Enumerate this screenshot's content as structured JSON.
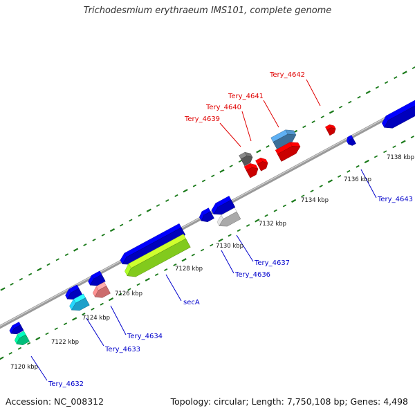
{
  "title": "Trichodesmium erythraeum IMS101, complete genome",
  "footer": {
    "accession": "Accession: NC_008312",
    "summary": "Topology: circular; Length: 7,750,108 bp; Genes: 4,498"
  },
  "colors": {
    "backbone": "#9a9a9a",
    "tick": "#1a7a1a",
    "forward_label": "#e00000",
    "reverse_label": "#0000cc",
    "leader_forward": "#e00000",
    "leader_reverse": "#0000cc"
  },
  "ticks": {
    "labels": [
      "7120 kbp",
      "7122 kbp",
      "7124 kbp",
      "7126 kbp",
      "7128 kbp",
      "7130 kbp",
      "7132 kbp",
      "7134 kbp",
      "7136 kbp",
      "7138 kbp"
    ]
  },
  "genes": [
    {
      "id": "g-4632a",
      "strand": "-",
      "color": "#0000dd"
    },
    {
      "id": "g-4632",
      "strand": "-",
      "color": "#00e090",
      "label": "Tery_4632"
    },
    {
      "id": "g-4633a",
      "strand": "-",
      "color": "#0000dd"
    },
    {
      "id": "g-4633",
      "strand": "-",
      "color": "#22bbee",
      "label": "Tery_4633"
    },
    {
      "id": "g-4634a",
      "strand": "-",
      "color": "#0000dd"
    },
    {
      "id": "g-4634",
      "strand": "-",
      "color": "#f08080",
      "label": "Tery_4634"
    },
    {
      "id": "g-secA-blue",
      "strand": "-",
      "color": "#0000dd"
    },
    {
      "id": "g-secA",
      "strand": "-",
      "color": "#99ee22",
      "label": "secA"
    },
    {
      "id": "g-4636",
      "strand": "-",
      "color": "#0000dd",
      "label": "Tery_4636"
    },
    {
      "id": "g-4636b",
      "strand": "-",
      "color": "#0000dd"
    },
    {
      "id": "g-4637",
      "strand": "-",
      "color": "#c8c8c8",
      "label": "Tery_4637"
    },
    {
      "id": "g-4639",
      "strand": "+",
      "color": "#666666",
      "label": "Tery_4639"
    },
    {
      "id": "g-4640",
      "strand": "+",
      "color": "#ee0000",
      "label": "Tery_4640"
    },
    {
      "id": "g-4640b",
      "strand": "+",
      "color": "#ee0000"
    },
    {
      "id": "g-4641",
      "strand": "+",
      "color": "#4682b4",
      "label": "Tery_4641"
    },
    {
      "id": "g-4641b",
      "strand": "+",
      "color": "#ee0000"
    },
    {
      "id": "g-4642",
      "strand": "+",
      "color": "#ee0000",
      "label": "Tery_4642"
    },
    {
      "id": "g-4643",
      "strand": "-",
      "color": "#0000dd",
      "label": "Tery_4643"
    },
    {
      "id": "g-right",
      "strand": "-",
      "color": "#0000dd"
    }
  ]
}
